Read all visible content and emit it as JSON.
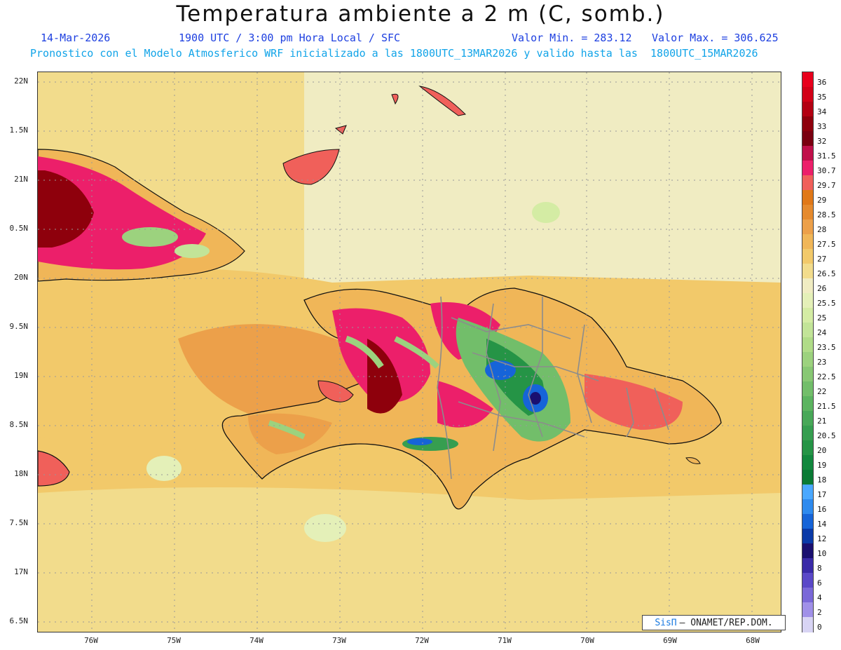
{
  "title": "Temperatura ambiente a 2 m (C, somb.)",
  "subtitle": {
    "date": "14-Mar-2026",
    "time": "1900 UTC / 3:00 pm Hora Local / SFC",
    "min": "Valor Min. = 283.12",
    "max": "Valor Max. = 306.625"
  },
  "model_line": "Pronostico con el Modelo Atmosferico WRF inicializado a las 1800UTC_13MAR2026 y valido hasta las  1800UTC_15MAR2026",
  "lat_labels": [
    "22N",
    "1.5N",
    "21N",
    "0.5N",
    "20N",
    "9.5N",
    "19N",
    "8.5N",
    "18N",
    "7.5N",
    "17N",
    "6.5N"
  ],
  "lon_labels": [
    "76W",
    "75W",
    "74W",
    "73W",
    "72W",
    "71W",
    "70W",
    "69W",
    "68W"
  ],
  "legend": {
    "labels": [
      "36",
      "35",
      "34",
      "33",
      "32",
      "31.5",
      "30.7",
      "29.7",
      "29",
      "28.5",
      "28",
      "27.5",
      "27",
      "26.5",
      "26",
      "25.5",
      "25",
      "24",
      "23.5",
      "23",
      "22.5",
      "22",
      "21.5",
      "21",
      "20.5",
      "20",
      "19",
      "18",
      "17",
      "16",
      "14",
      "12",
      "10",
      "8",
      "6",
      "4",
      "2",
      "0"
    ],
    "colors": [
      "#e8001c",
      "#d20016",
      "#b30012",
      "#8e000c",
      "#7a0010",
      "#c0104a",
      "#ec1f6a",
      "#f0605a",
      "#e07818",
      "#e58a2e",
      "#eca04a",
      "#f0b658",
      "#f2c96a",
      "#f2dc8c",
      "#f0ecc2",
      "#e4f0b8",
      "#d4eca4",
      "#c2e498",
      "#b0dc88",
      "#9cd27e",
      "#88c874",
      "#72be6a",
      "#5cb460",
      "#48a858",
      "#369e50",
      "#259446",
      "#12883e",
      "#0a7a34",
      "#4aa8ff",
      "#2e8aee",
      "#1664d8",
      "#0a3aa8",
      "#1a1070",
      "#3a2aa8",
      "#5a48c8",
      "#7a68d8",
      "#a090e8",
      "#d8d4f4"
    ]
  },
  "credit": {
    "brand": "SisΠ",
    "text": "– ONAMET/REP.DOM."
  }
}
